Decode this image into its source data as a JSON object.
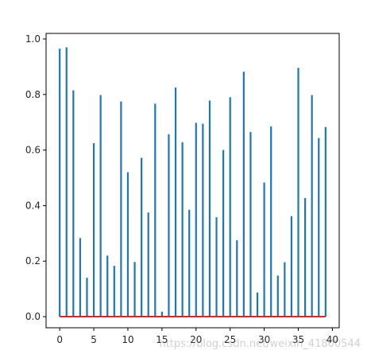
{
  "chart_data": {
    "type": "bar",
    "x": [
      0,
      1,
      2,
      3,
      4,
      5,
      6,
      7,
      8,
      9,
      10,
      11,
      12,
      13,
      14,
      15,
      16,
      17,
      18,
      19,
      20,
      21,
      22,
      23,
      24,
      25,
      26,
      27,
      28,
      29,
      30,
      31,
      32,
      33,
      34,
      35,
      36,
      37,
      38,
      39
    ],
    "values": [
      0.965,
      0.97,
      0.815,
      0.283,
      0.14,
      0.625,
      0.798,
      0.22,
      0.183,
      0.775,
      0.52,
      0.197,
      0.572,
      0.375,
      0.767,
      0.018,
      0.657,
      0.825,
      0.628,
      0.385,
      0.698,
      0.695,
      0.778,
      0.358,
      0.6,
      0.79,
      0.275,
      0.882,
      0.665,
      0.087,
      0.483,
      0.685,
      0.148,
      0.196,
      0.362,
      0.896,
      0.427,
      0.798,
      0.643,
      0.683
    ],
    "xlim": [
      -2,
      41
    ],
    "ylim": [
      -0.04,
      1.02
    ],
    "xticks": [
      0,
      5,
      10,
      15,
      20,
      25,
      30,
      35,
      40
    ],
    "yticks": [
      0.0,
      0.2,
      0.4,
      0.6,
      0.8,
      1.0
    ],
    "xtick_labels": [
      "0",
      "5",
      "10",
      "15",
      "20",
      "25",
      "30",
      "35",
      "40"
    ],
    "ytick_labels": [
      "0.0",
      "0.2",
      "0.4",
      "0.6",
      "0.8",
      "1.0"
    ],
    "baseline": 0,
    "grid": false,
    "colors": {
      "bars": "#1f77b4",
      "baseline": "#d62728",
      "axes": "#000000"
    }
  },
  "watermark": "https://blog.csdn.net/weixin_41800544"
}
